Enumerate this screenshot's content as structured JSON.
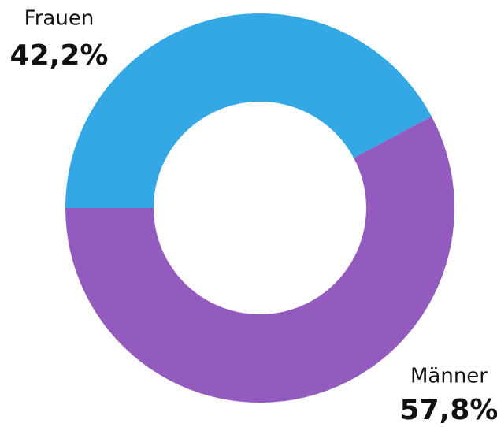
{
  "chart_data": {
    "type": "donut",
    "categories": [
      "Frauen",
      "Männer"
    ],
    "values": [
      42.2,
      57.8
    ],
    "value_labels": [
      "42,2%",
      "57,8%"
    ],
    "colors": [
      "#33a8e4",
      "#945bbf"
    ]
  }
}
